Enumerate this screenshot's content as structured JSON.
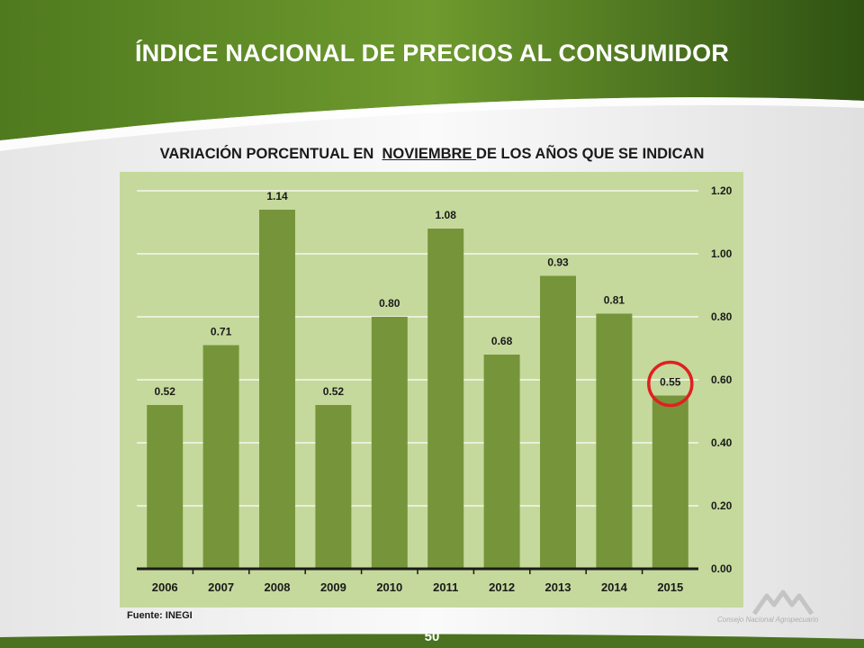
{
  "header": {
    "title": "ÍNDICE NACIONAL DE PRECIOS AL CONSUMIDOR"
  },
  "subtitle": {
    "prefix": "VARIACIÓN PORCENTUAL EN  ",
    "highlight": "NOVIEMBRE ",
    "suffix": "DE LOS AÑOS QUE SE INDICAN"
  },
  "footer": {
    "source": "Fuente:  INEGI",
    "page_number": "50",
    "logo_caption": "Consejo Nacional Agropecuario"
  },
  "colors": {
    "bar": "#76953a",
    "chart_bg": "#c5d99c",
    "highlight_circle": "#e02020"
  },
  "chart_data": {
    "type": "bar",
    "categories": [
      "2006",
      "2007",
      "2008",
      "2009",
      "2010",
      "2011",
      "2012",
      "2013",
      "2014",
      "2015"
    ],
    "values": [
      0.52,
      0.71,
      1.14,
      0.52,
      0.8,
      1.08,
      0.68,
      0.93,
      0.81,
      0.55
    ],
    "data_labels": [
      "0.52",
      "0.71",
      "1.14",
      "0.52",
      "0.80",
      "1.08",
      "0.68",
      "0.93",
      "0.81",
      "0.55"
    ],
    "ylim": [
      0,
      1.2
    ],
    "yticks": [
      "0.00",
      "0.20",
      "0.40",
      "0.60",
      "0.80",
      "1.00",
      "1.20"
    ],
    "y_axis_position": "right",
    "grid": true,
    "highlighted_category": "2015"
  }
}
